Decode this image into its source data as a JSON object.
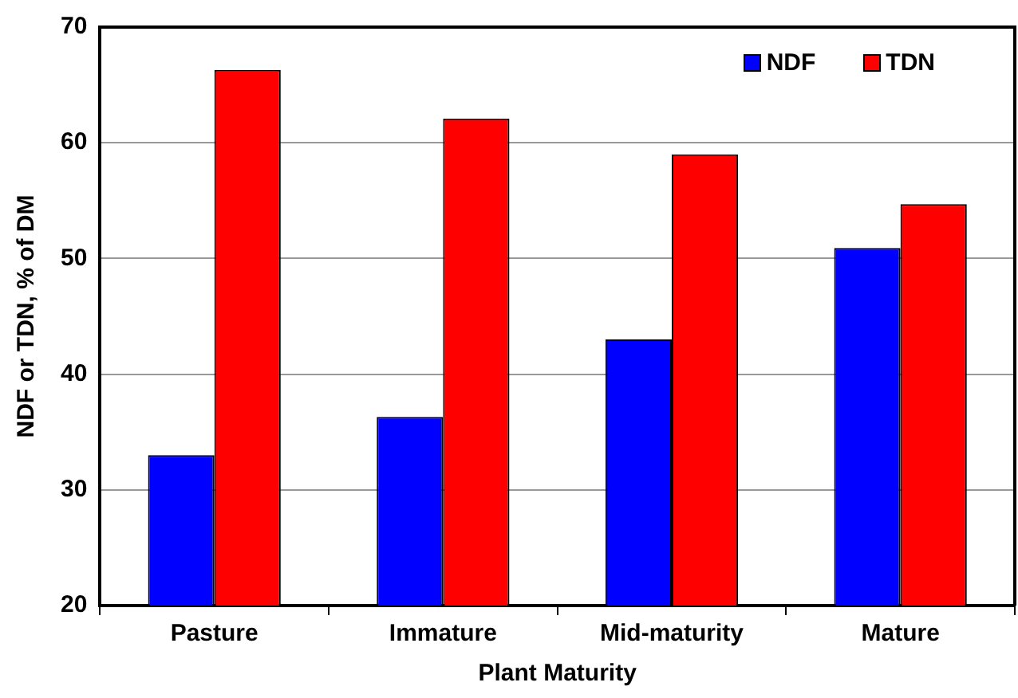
{
  "chart_data": {
    "type": "bar",
    "xlabel": "Plant Maturity",
    "ylabel": "NDF or TDN, % of DM",
    "categories": [
      "Pasture",
      "Immature",
      "Mid-maturity",
      "Mature"
    ],
    "series": [
      {
        "name": "NDF",
        "color": "#0000ff",
        "values": [
          33,
          36.3,
          43,
          50.9
        ]
      },
      {
        "name": "TDN",
        "color": "#ff0000",
        "values": [
          66.3,
          62.1,
          59,
          54.7
        ]
      }
    ],
    "ylim": [
      20,
      70
    ],
    "yticks": [
      20,
      30,
      40,
      50,
      60,
      70
    ],
    "grid": "y",
    "legend": "top right"
  }
}
